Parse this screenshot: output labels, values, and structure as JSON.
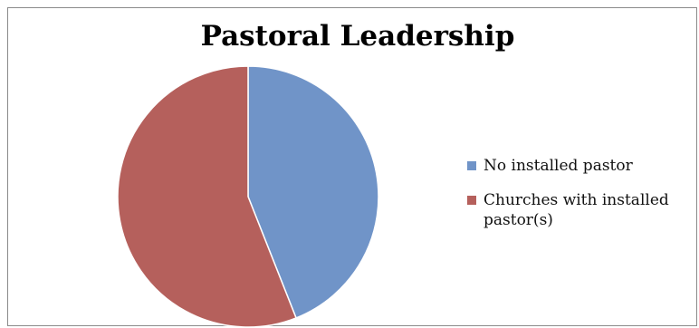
{
  "chart_data": {
    "type": "pie",
    "title": "Pastoral Leadership",
    "slices": [
      {
        "name": "No installed pastor",
        "value": 44,
        "color": "#7094C8"
      },
      {
        "name": "Churches with installed pastor(s)",
        "value": 56,
        "color": "#B5605C"
      }
    ],
    "legend_position": "right",
    "start_angle": "top",
    "direction": "clockwise"
  }
}
